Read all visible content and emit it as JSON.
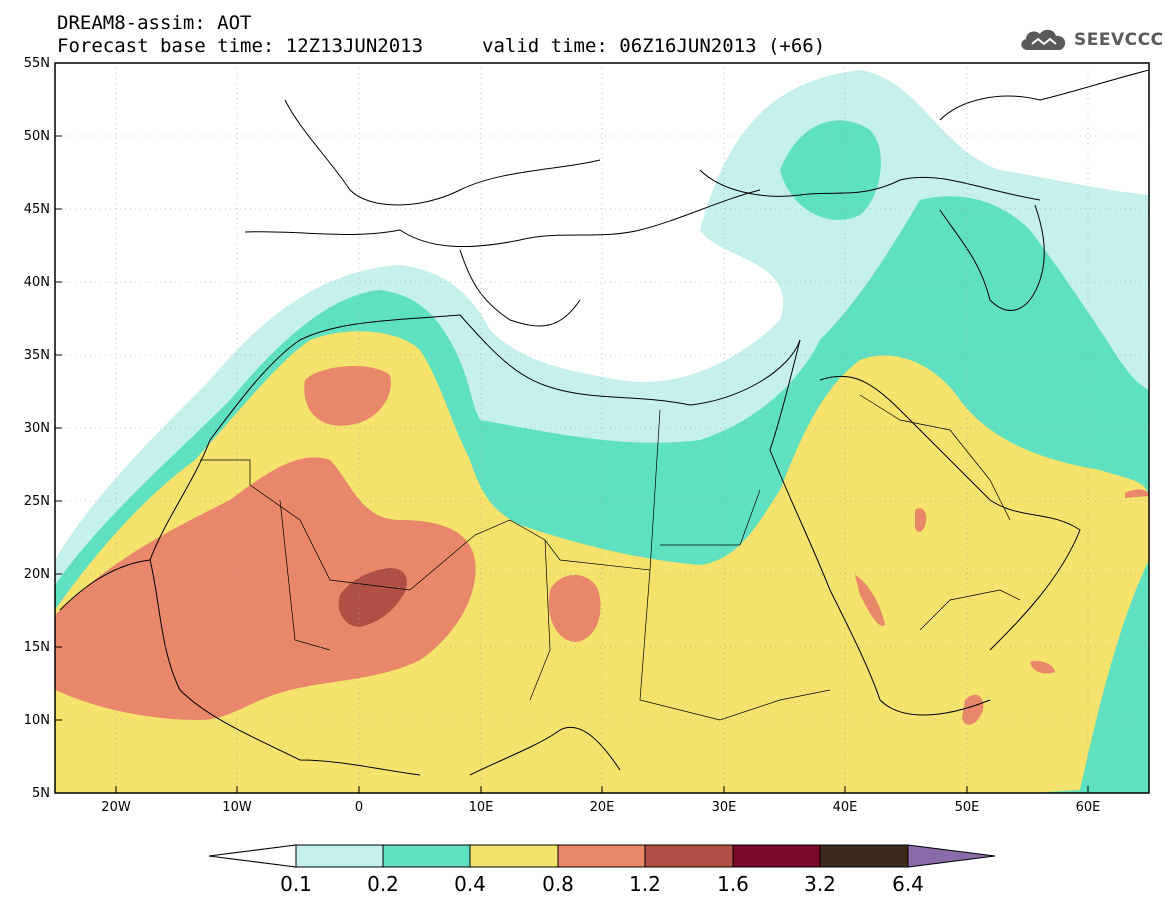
{
  "title": {
    "line1": "DREAM8-assim: AOT",
    "base_time": "Forecast base time: 12Z13JUN2013",
    "valid_time": "valid time: 06Z16JUN2013 (+66)"
  },
  "logo": {
    "text": "SEEVCCC",
    "icon": "cloud-icon"
  },
  "map": {
    "lat_labels": [
      "55N",
      "50N",
      "45N",
      "40N",
      "35N",
      "30N",
      "25N",
      "20N",
      "15N",
      "10N",
      "5N"
    ],
    "lon_labels": [
      "20W",
      "10W",
      "0",
      "10E",
      "20E",
      "30E",
      "40E",
      "50E",
      "60E"
    ],
    "extent": {
      "lon_min": -25,
      "lon_max": 65,
      "lat_min": 5,
      "lat_max": 55
    }
  },
  "colorbar": {
    "labels": [
      "0.1",
      "0.2",
      "0.4",
      "0.8",
      "1.2",
      "1.6",
      "3.2",
      "6.4"
    ],
    "colors": [
      "#ffffff",
      "#c5f0ec",
      "#5fe0c0",
      "#f5e36e",
      "#e8876a",
      "#b04f44",
      "#7a0a2a",
      "#3e2a1a",
      "#8a6aa8"
    ]
  },
  "colors": {
    "aot_0_1": "#c5f0ec",
    "aot_0_2": "#5fe0c0",
    "aot_0_4": "#f5e36e",
    "aot_0_8": "#e8876a",
    "aot_1_2": "#b04f44"
  }
}
